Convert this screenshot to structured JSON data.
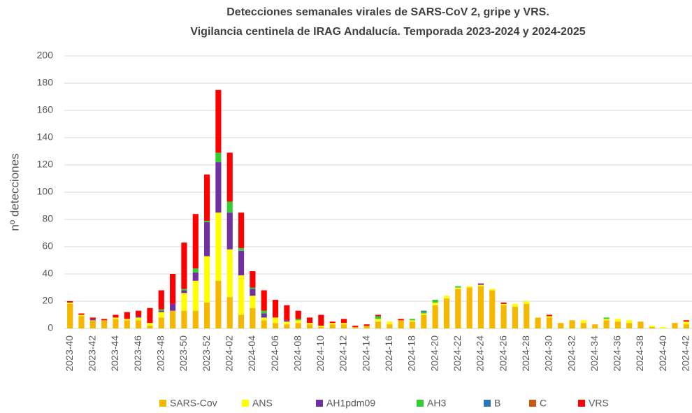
{
  "chart_data": {
    "type": "stacked_bar",
    "title": "Detecciones semanales virales de SARS-CoV 2, gripe y VRS.",
    "subtitle": "Vigilancia centinela de IRAG Andalucía. Temporada 2023-2024 y 2024-2025",
    "y_label": "nº detecciones",
    "categories": [
      "2023-40",
      null,
      "2023-42",
      null,
      "2023-44",
      null,
      "2023-46",
      null,
      "2023-48",
      null,
      "2023-50",
      null,
      "2023-52",
      null,
      "2024-02",
      null,
      "2024-04",
      null,
      "2024-06",
      null,
      "2024-08",
      null,
      "2024-10",
      null,
      "2024-12",
      null,
      "2024-14",
      null,
      "2024-16",
      null,
      "2024-18",
      null,
      "2024-20",
      null,
      "2024-22",
      null,
      "2024-24",
      null,
      "2024-26",
      null,
      "2024-28",
      null,
      "2024-30",
      null,
      "2024-32",
      null,
      "2024-34",
      null,
      "2024-36",
      null,
      "2024-38",
      null,
      "2024-40",
      null,
      "2024-42"
    ],
    "series": [
      {
        "name": "SARS-Cov",
        "color": "#f5b800",
        "values": [
          18,
          9,
          6,
          6,
          7,
          6,
          6,
          2,
          8,
          13,
          13,
          13,
          19,
          35,
          23,
          10,
          15,
          6,
          4,
          3,
          4,
          3,
          1,
          3,
          3,
          1,
          2,
          5,
          3,
          6,
          5,
          10,
          17,
          22,
          29,
          30,
          31,
          28,
          17,
          16,
          18,
          8,
          8,
          4,
          6,
          4,
          3,
          6,
          5,
          4,
          5,
          1,
          0,
          4,
          3
        ]
      },
      {
        "name": "ANS",
        "color": "#ffff00",
        "values": [
          1,
          1,
          0,
          0,
          1,
          1,
          2,
          2,
          4,
          0,
          13,
          22,
          34,
          50,
          35,
          29,
          9,
          2,
          4,
          2,
          2,
          1,
          1,
          1,
          1,
          0,
          0,
          2,
          2,
          0,
          1,
          1,
          2,
          2,
          1,
          1,
          1,
          1,
          1,
          2,
          2,
          0,
          1,
          0,
          0,
          2,
          0,
          1,
          2,
          2,
          0,
          1,
          1,
          0,
          2
        ]
      },
      {
        "name": "AH1pdm09",
        "color": "#7030a0",
        "values": [
          0,
          0,
          1,
          0,
          0,
          0,
          1,
          0,
          1,
          5,
          2,
          6,
          25,
          37,
          27,
          18,
          5,
          3,
          0,
          1,
          0,
          0,
          0,
          0,
          0,
          0,
          0,
          0,
          0,
          0,
          0,
          0,
          0,
          0,
          0,
          0,
          1,
          0,
          0,
          0,
          0,
          0,
          0,
          0,
          0,
          0,
          0,
          0,
          0,
          0,
          0,
          0,
          0,
          0,
          0
        ]
      },
      {
        "name": "AH3",
        "color": "#33cc33",
        "values": [
          0,
          0,
          0,
          0,
          0,
          0,
          0,
          0,
          1,
          0,
          1,
          3,
          1,
          7,
          8,
          2,
          1,
          2,
          0,
          0,
          1,
          0,
          0,
          0,
          0,
          0,
          0,
          2,
          0,
          0,
          1,
          1,
          2,
          0,
          1,
          0,
          0,
          0,
          0,
          0,
          0,
          0,
          0,
          0,
          0,
          0,
          0,
          1,
          0,
          0,
          0,
          0,
          0,
          0,
          0
        ]
      },
      {
        "name": "B",
        "color": "#2e75b6",
        "values": [
          0,
          0,
          0,
          0,
          0,
          0,
          0,
          0,
          0,
          0,
          0,
          0,
          0,
          0,
          0,
          0,
          0,
          0,
          0,
          0,
          0,
          0,
          0,
          0,
          0,
          0,
          0,
          0,
          0,
          0,
          0,
          1,
          0,
          0,
          0,
          0,
          0,
          0,
          0,
          0,
          0,
          0,
          0,
          0,
          0,
          0,
          0,
          0,
          0,
          0,
          0,
          0,
          0,
          0,
          0
        ]
      },
      {
        "name": "C",
        "color": "#c55a11",
        "values": [
          0,
          0,
          0,
          0,
          0,
          0,
          0,
          0,
          0,
          0,
          0,
          0,
          0,
          0,
          0,
          0,
          0,
          0,
          0,
          0,
          0,
          0,
          0,
          0,
          0,
          0,
          0,
          0,
          0,
          0,
          0,
          0,
          0,
          0,
          0,
          0,
          0,
          0,
          0,
          0,
          0,
          0,
          0,
          0,
          0,
          0,
          0,
          0,
          0,
          0,
          0,
          0,
          0,
          0,
          0
        ]
      },
      {
        "name": "VRS",
        "color": "#ff0000",
        "values": [
          1,
          1,
          1,
          1,
          2,
          5,
          4,
          11,
          14,
          22,
          34,
          40,
          34,
          46,
          36,
          26,
          12,
          15,
          13,
          11,
          6,
          4,
          8,
          1,
          3,
          1,
          1,
          1,
          0,
          1,
          0,
          0,
          0,
          0,
          0,
          0,
          0,
          0,
          1,
          0,
          0,
          0,
          1,
          0,
          0,
          0,
          0,
          0,
          0,
          0,
          0,
          0,
          0,
          0,
          1
        ]
      }
    ],
    "ylim": [
      0,
      200
    ],
    "yticks": [
      0,
      20,
      40,
      60,
      80,
      100,
      120,
      140,
      160,
      180,
      200
    ],
    "grid": true
  }
}
